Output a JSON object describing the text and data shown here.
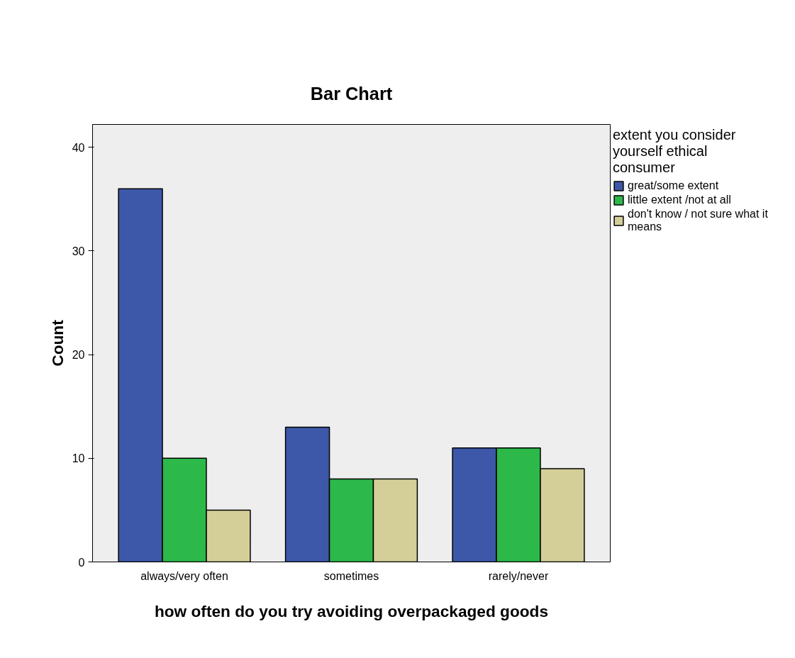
{
  "chart_data": {
    "type": "bar",
    "title": "Bar Chart",
    "xlabel": "how often do you try avoiding overpackaged goods",
    "ylabel": "Count",
    "legend_title": "extent you consider yourself ethical consumer",
    "categories": [
      "always/very often",
      "sometimes",
      "rarely/never"
    ],
    "series": [
      {
        "name": "great/some extent",
        "color": "#3d58a8",
        "values": [
          36,
          13,
          11
        ]
      },
      {
        "name": "little extent /not at all",
        "color": "#2db84a",
        "values": [
          10,
          8,
          11
        ]
      },
      {
        "name": "don't know / not sure what it means",
        "color": "#d4cf98",
        "values": [
          5,
          8,
          9
        ]
      }
    ],
    "ylim": [
      0,
      42.2
    ],
    "yticks": [
      0,
      10,
      20,
      30,
      40
    ],
    "grid": false,
    "legend": "right"
  }
}
